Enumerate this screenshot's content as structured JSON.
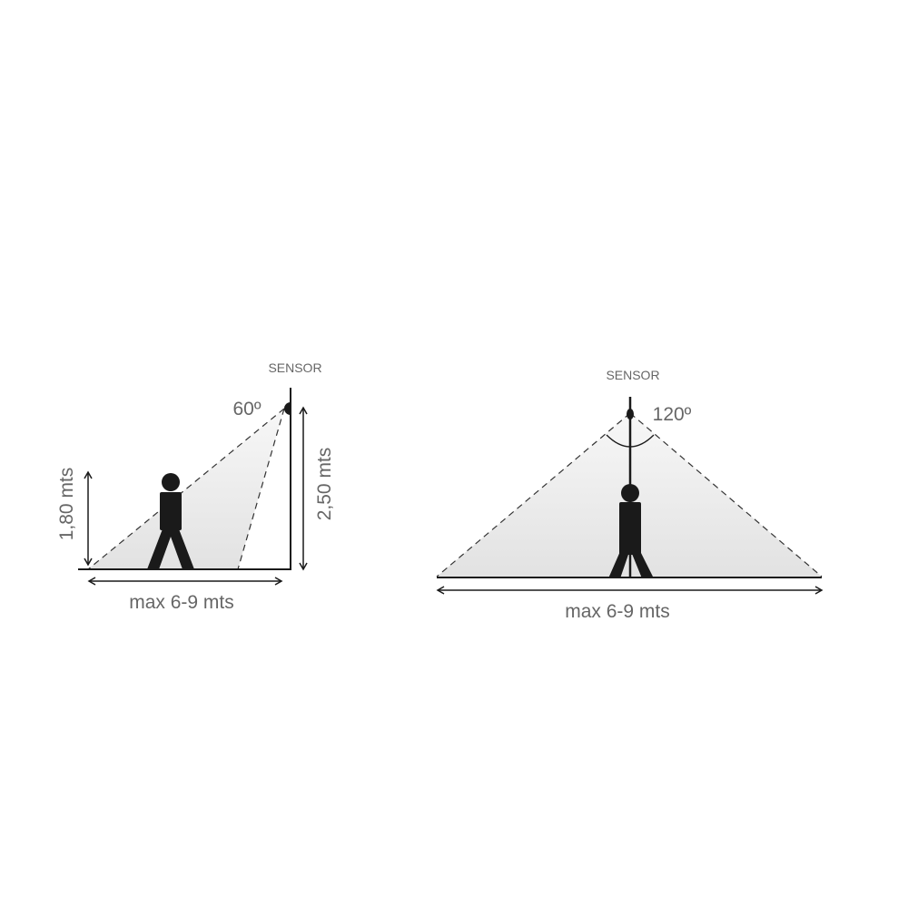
{
  "side_view": {
    "sensor_label": "SENSOR",
    "angle_label": "60º",
    "person_height_label": "1,80 mts",
    "sensor_height_label": "2,50 mts",
    "range_label": "max 6-9 mts"
  },
  "front_view": {
    "sensor_label": "SENSOR",
    "angle_label": "120º",
    "range_label": "max 6-9 mts"
  },
  "colors": {
    "line": "#1a1a1a",
    "text": "#666666",
    "cone_fill": "#e8e8e8"
  }
}
